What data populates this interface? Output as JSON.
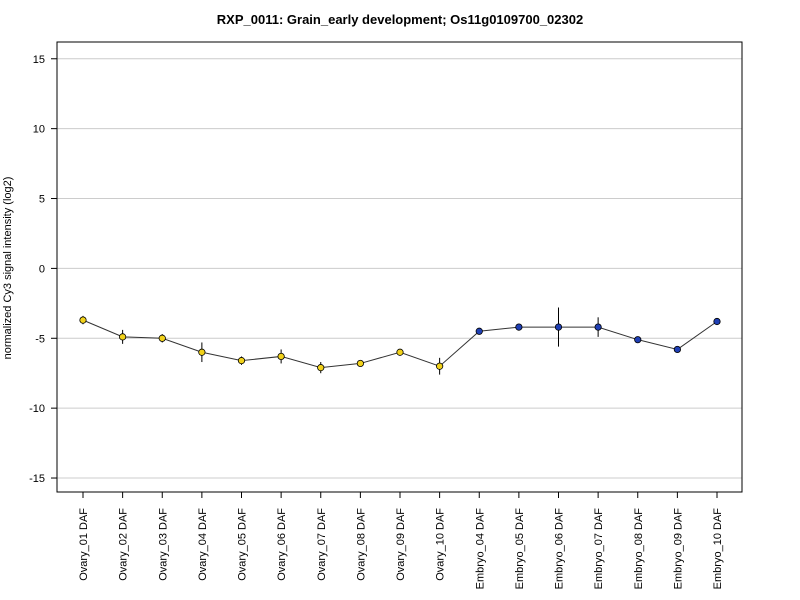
{
  "chart_data": {
    "type": "line",
    "title": "RXP_0011: Grain_early development; Os11g0109700_02302",
    "xlabel": "",
    "ylabel": "normalized Cy3 signal intensity (log2)",
    "ylim": [
      -16,
      16.2
    ],
    "yticks": [
      -15,
      -10,
      -5,
      0,
      5,
      10,
      15
    ],
    "ytick_labels": [
      "-15",
      "-10",
      "-5",
      "0",
      "5",
      "10",
      "15"
    ],
    "grid": "horizontal",
    "categories": [
      "Ovary_01 DAF",
      "Ovary_02 DAF",
      "Ovary_03 DAF",
      "Ovary_04 DAF",
      "Ovary_05 DAF",
      "Ovary_06 DAF",
      "Ovary_07 DAF",
      "Ovary_08 DAF",
      "Ovary_09 DAF",
      "Ovary_10 DAF",
      "Embryo_04 DAF",
      "Embryo_05 DAF",
      "Embryo_06 DAF",
      "Embryo_07 DAF",
      "Embryo_08 DAF",
      "Embryo_09 DAF",
      "Embryo_10 DAF"
    ],
    "values": [
      -3.7,
      -4.9,
      -5.0,
      -6.0,
      -6.6,
      -6.3,
      -7.1,
      -6.8,
      -6.0,
      -7.0,
      -4.5,
      -4.2,
      -4.2,
      -4.2,
      -5.1,
      -5.8,
      -3.8
    ],
    "error": [
      0.3,
      0.5,
      0.3,
      0.7,
      0.3,
      0.5,
      0.4,
      0.2,
      0.2,
      0.6,
      0.2,
      0.2,
      1.4,
      0.7,
      0.2,
      0.2,
      0.2
    ],
    "point_colors": [
      "#f2d21a",
      "#f2d21a",
      "#f2d21a",
      "#f2d21a",
      "#f2d21a",
      "#f2d21a",
      "#f2d21a",
      "#f2d21a",
      "#f2d21a",
      "#f2d21a",
      "#1f3fb4",
      "#1f3fb4",
      "#1f3fb4",
      "#1f3fb4",
      "#1f3fb4",
      "#1f3fb4",
      "#1f3fb4"
    ],
    "line_color": "#333333",
    "grid_color": "#cccccc"
  }
}
